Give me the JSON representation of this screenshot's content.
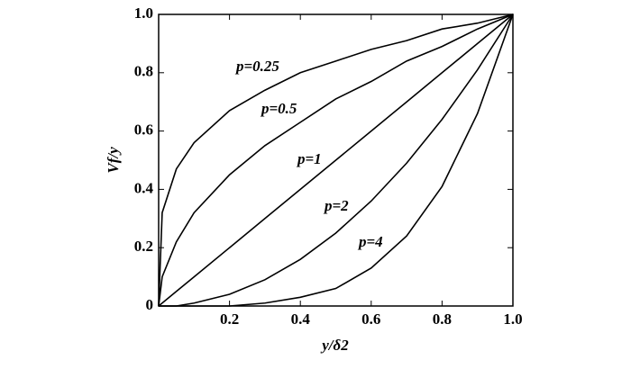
{
  "chart_data": {
    "type": "line",
    "x_label": "y/δ2",
    "y_label": "Vf/y",
    "x": [
      0,
      0.01,
      0.05,
      0.1,
      0.2,
      0.3,
      0.4,
      0.5,
      0.6,
      0.7,
      0.8,
      0.9,
      1
    ],
    "series": [
      {
        "name": "p=0.25",
        "color": "#000000",
        "values": [
          0,
          0.32,
          0.47,
          0.56,
          0.67,
          0.74,
          0.8,
          0.84,
          0.88,
          0.91,
          0.95,
          0.97,
          1
        ]
      },
      {
        "name": "p=0.5",
        "color": "#000000",
        "values": [
          0,
          0.1,
          0.22,
          0.32,
          0.45,
          0.55,
          0.63,
          0.71,
          0.77,
          0.84,
          0.89,
          0.95,
          1
        ]
      },
      {
        "name": "p=1",
        "color": "#000000",
        "values": [
          0,
          0.01,
          0.05,
          0.1,
          0.2,
          0.3,
          0.4,
          0.5,
          0.6,
          0.7,
          0.8,
          0.9,
          1
        ]
      },
      {
        "name": "p=2",
        "color": "#000000",
        "values": [
          0,
          0,
          0,
          0.01,
          0.04,
          0.09,
          0.16,
          0.25,
          0.36,
          0.49,
          0.64,
          0.81,
          1
        ]
      },
      {
        "name": "p=4",
        "color": "#000000",
        "values": [
          0,
          0,
          0,
          0,
          0,
          0.01,
          0.03,
          0.06,
          0.13,
          0.24,
          0.41,
          0.66,
          1
        ]
      }
    ],
    "xlim": [
      0,
      1
    ],
    "ylim": [
      0,
      1
    ],
    "xticks": [
      0.2,
      0.4,
      0.6,
      0.8,
      {
        "value": 1,
        "label": "1.0"
      }
    ],
    "yticks": [
      0,
      0.2,
      0.4,
      0.6,
      0.8,
      {
        "value": 1,
        "label": "1.0"
      }
    ]
  }
}
